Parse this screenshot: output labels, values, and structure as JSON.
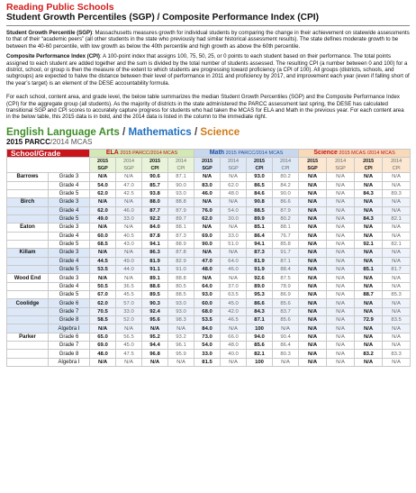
{
  "header": {
    "org": "Reading Public Schools",
    "title": "Student Growth Percentiles (SGP) / Composite Performance Index (CPI)"
  },
  "paragraphs": {
    "sgp_term": "Student Growth Percentile (SGP)",
    "sgp_text": ": Massachusetts measures growth for individual students by comparing the change in their achievement on statewide assessments to that of their “academic peers” (all other students in the state who previously had similar historical assessment results).  The state defines moderate growth to be between the 40-60 percentile, with low growth as below the 40th percentile and high growth as above the 60th percentile.",
    "cpi_term": "Composite Performance Index (CPI)",
    "cpi_text": ":  A 100-point index that assigns 100, 75, 50, 25, or 0 points to each student based on their performance.  The total points assigned to each student are added together and the sum is divided by the total number of students assessed. The resulting CPI (a number between 0 and 100) for a district, school, or group is then the measure of the extent to which students are progressing toward proficiency (a CPI of 100).  All groups (districts, schools, and subgroups) are expected to halve the distance between their level of performance in 2011 and proficiency by 2017, and improvement each year (even if falling short of the year’s target) is an element of the DESE accountability formula.",
    "summary_text": "For each school, content area, and grade level, the below table summarizes the median Student Growth Percentiles (SGP) and the Composite Performance Index (CPI) for the aggregate group (all students).  As the majority of districts in the state administered the PARCC assessment last spring, the DESE has calculated transitional SGP and CPI scores to accurately capture progress for students who had taken the MCAS for ELA and Math in the previous year.  For each content area in the below table, this 2015 data is in bold, and the 2014 data is listed in the column to the immediate right."
  },
  "section": {
    "ela": "English Language Arts",
    "sep1": " / ",
    "math": "Mathematics",
    "sep2": " / ",
    "science": "Science",
    "sub_bold": "2015 PARCC",
    "sub_rest": "/2014 MCAS"
  },
  "table": {
    "school_grade_header": "School/Grade",
    "ela_header": "ELA",
    "ela_header_small": " 2015 PARCC/2014 MCAS",
    "math_header": "Math",
    "math_header_small": " 2015 PARCC/2014 MCAS",
    "sci_header": "Science",
    "sci_header_small": " 2015 MCAS /2014 MCAS",
    "col_year_cur": "2015",
    "col_year_prev": "2014",
    "col_sgp": "SGP",
    "col_cpi": "CPI",
    "rows": [
      {
        "school": "Barrows",
        "grade": "Grade 3",
        "v": [
          "N/A",
          "N/A",
          "90.6",
          "87.1",
          "N/A",
          "N/A",
          "93.0",
          "80.2",
          "N/A",
          "N/A",
          "N/A",
          "N/A"
        ],
        "shade": false
      },
      {
        "school": "",
        "grade": "Grade 4",
        "v": [
          "54.0",
          "47.0",
          "85.7",
          "90.0",
          "83.0",
          "62.0",
          "86.5",
          "84.2",
          "N/A",
          "N/A",
          "N/A",
          "N/A"
        ],
        "shade": false
      },
      {
        "school": "",
        "grade": "Grade 5",
        "v": [
          "62.0",
          "42.5",
          "93.8",
          "93.0",
          "46.0",
          "48.0",
          "84.6",
          "90.0",
          "N/A",
          "N/A",
          "84.3",
          "89.3"
        ],
        "shade": false
      },
      {
        "school": "Birch",
        "grade": "Grade 3",
        "v": [
          "N/A",
          "N/A",
          "88.0",
          "88.8",
          "N/A",
          "N/A",
          "90.8",
          "86.6",
          "N/A",
          "N/A",
          "N/A",
          "N/A"
        ],
        "shade": true
      },
      {
        "school": "",
        "grade": "Grade 4",
        "v": [
          "62.0",
          "46.0",
          "87.7",
          "87.9",
          "76.0",
          "54.0",
          "88.5",
          "87.9",
          "N/A",
          "N/A",
          "N/A",
          "N/A"
        ],
        "shade": true
      },
      {
        "school": "",
        "grade": "Grade 5",
        "v": [
          "49.0",
          "33.0",
          "92.2",
          "89.7",
          "62.0",
          "30.0",
          "89.9",
          "80.2",
          "N/A",
          "N/A",
          "84.3",
          "82.1"
        ],
        "shade": true
      },
      {
        "school": "Eaton",
        "grade": "Grade 3",
        "v": [
          "N/A",
          "N/A",
          "84.0",
          "88.1",
          "N/A",
          "N/A",
          "85.1",
          "88.1",
          "N/A",
          "N/A",
          "N/A",
          "N/A"
        ],
        "shade": false
      },
      {
        "school": "",
        "grade": "Grade 4",
        "v": [
          "60.0",
          "40.5",
          "87.8",
          "87.3",
          "69.0",
          "33.0",
          "86.4",
          "76.7",
          "N/A",
          "N/A",
          "N/A",
          "N/A"
        ],
        "shade": false
      },
      {
        "school": "",
        "grade": "Grade 5",
        "v": [
          "68.5",
          "43.0",
          "94.1",
          "88.9",
          "90.0",
          "51.0",
          "94.1",
          "85.8",
          "N/A",
          "N/A",
          "92.1",
          "82.1"
        ],
        "shade": false
      },
      {
        "school": "Killam",
        "grade": "Grade 3",
        "v": [
          "N/A",
          "N/A",
          "86.3",
          "87.8",
          "N/A",
          "N/A",
          "87.3",
          "91.7",
          "N/A",
          "N/A",
          "N/A",
          "N/A"
        ],
        "shade": true
      },
      {
        "school": "",
        "grade": "Grade 4",
        "v": [
          "44.5",
          "49.0",
          "81.9",
          "82.9",
          "47.0",
          "64.0",
          "81.9",
          "87.1",
          "N/A",
          "N/A",
          "N/A",
          "N/A"
        ],
        "shade": true
      },
      {
        "school": "",
        "grade": "Grade 5",
        "v": [
          "53.5",
          "44.0",
          "91.1",
          "91.0",
          "48.0",
          "46.0",
          "91.9",
          "88.4",
          "N/A",
          "N/A",
          "85.1",
          "81.7"
        ],
        "shade": true
      },
      {
        "school": "Wood End",
        "grade": "Grade 3",
        "v": [
          "N/A",
          "N/A",
          "89.1",
          "88.8",
          "N/A",
          "N/A",
          "92.6",
          "87.5",
          "N/A",
          "N/A",
          "N/A",
          "N/A"
        ],
        "shade": false
      },
      {
        "school": "",
        "grade": "Grade 4",
        "v": [
          "50.5",
          "36.5",
          "88.6",
          "80.5",
          "64.0",
          "37.0",
          "89.0",
          "78.9",
          "N/A",
          "N/A",
          "N/A",
          "N/A"
        ],
        "shade": false
      },
      {
        "school": "",
        "grade": "Grade 5",
        "v": [
          "67.0",
          "45.5",
          "89.5",
          "88.5",
          "93.0",
          "63.5",
          "95.3",
          "86.9",
          "N/A",
          "N/A",
          "88.7",
          "85.3"
        ],
        "shade": false
      },
      {
        "school": "Coolidge",
        "grade": "Grade 6",
        "v": [
          "62.0",
          "57.0",
          "90.3",
          "93.0",
          "60.0",
          "45.0",
          "86.6",
          "85.6",
          "N/A",
          "N/A",
          "N/A",
          "N/A"
        ],
        "shade": true
      },
      {
        "school": "",
        "grade": "Grade 7",
        "v": [
          "70.5",
          "33.0",
          "92.4",
          "93.0",
          "68.0",
          "42.0",
          "84.3",
          "83.7",
          "N/A",
          "N/A",
          "N/A",
          "N/A"
        ],
        "shade": true
      },
      {
        "school": "",
        "grade": "Grade 8",
        "v": [
          "58.5",
          "52.0",
          "95.6",
          "98.3",
          "53.5",
          "46.5",
          "87.1",
          "85.6",
          "N/A",
          "N/A",
          "72.9",
          "83.5"
        ],
        "shade": true
      },
      {
        "school": "",
        "grade": "Algebra I",
        "v": [
          "N/A",
          "N/A",
          "N/A",
          "N/A",
          "84.0",
          "N/A",
          "100",
          "N/A",
          "N/A",
          "N/A",
          "N/A",
          "N/A"
        ],
        "shade": true
      },
      {
        "school": "Parker",
        "grade": "Grade 6",
        "v": [
          "65.0",
          "56.5",
          "95.2",
          "93.2",
          "73.0",
          "66.0",
          "94.0",
          "90.4",
          "N/A",
          "N/A",
          "N/A",
          "N/A"
        ],
        "shade": false
      },
      {
        "school": "",
        "grade": "Grade 7",
        "v": [
          "69.0",
          "45.0",
          "94.4",
          "96.1",
          "54.0",
          "48.0",
          "85.6",
          "86.4",
          "N/A",
          "N/A",
          "N/A",
          "N/A"
        ],
        "shade": false
      },
      {
        "school": "",
        "grade": "Grade 8",
        "v": [
          "48.0",
          "47.5",
          "96.8",
          "95.9",
          "33.0",
          "40.0",
          "82.1",
          "80.3",
          "N/A",
          "N/A",
          "83.2",
          "83.3"
        ],
        "shade": false
      },
      {
        "school": "",
        "grade": "Algebra I",
        "v": [
          "N/A",
          "N/A",
          "N/A",
          "N/A",
          "81.5",
          "N/A",
          "100",
          "N/A",
          "N/A",
          "N/A",
          "N/A",
          "N/A"
        ],
        "shade": false
      }
    ]
  }
}
